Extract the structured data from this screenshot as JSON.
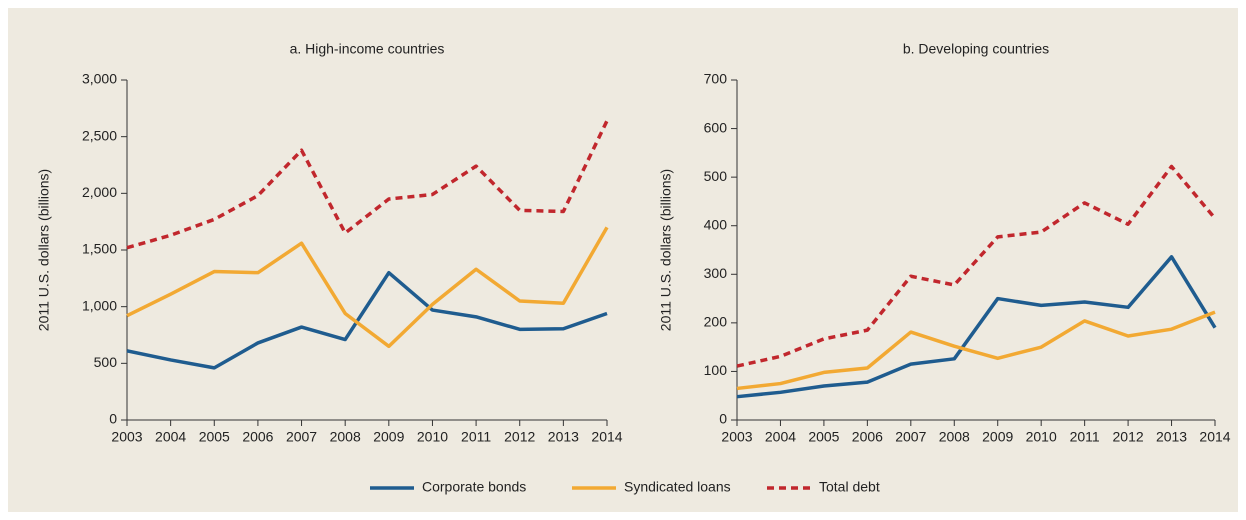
{
  "chart_data": [
    {
      "type": "line",
      "title": "a. High-income countries",
      "y_label": "2011 U.S. dollars (billions)",
      "categories": [
        "2003",
        "2004",
        "2005",
        "2006",
        "2007",
        "2008",
        "2009",
        "2010",
        "2011",
        "2012",
        "2013",
        "2014"
      ],
      "ylim": [
        0,
        3000
      ],
      "yticks": [
        0,
        500,
        {
          "value": 1000,
          "label": "1,000"
        },
        {
          "value": 1500,
          "label": "1,500"
        },
        {
          "value": 2000,
          "label": "2,000"
        },
        {
          "value": 2500,
          "label": "2,500"
        },
        {
          "value": 3000,
          "label": "3,000"
        }
      ],
      "series": [
        {
          "name": "Corporate bonds",
          "color": "#1f5c8f",
          "dash": false,
          "values": [
            610,
            530,
            460,
            680,
            820,
            710,
            1300,
            970,
            910,
            800,
            805,
            940
          ]
        },
        {
          "name": "Syndicated loans",
          "color": "#f2a933",
          "dash": false,
          "values": [
            920,
            1110,
            1310,
            1300,
            1560,
            940,
            650,
            1020,
            1330,
            1050,
            1030,
            1700
          ]
        },
        {
          "name": "Total debt",
          "color": "#c1272d",
          "dash": true,
          "values": [
            1520,
            1630,
            1770,
            1980,
            2380,
            1650,
            1950,
            1990,
            2240,
            1850,
            1840,
            2640
          ]
        }
      ]
    },
    {
      "type": "line",
      "title": "b. Developing countries",
      "y_label": "2011 U.S. dollars (billions)",
      "categories": [
        "2003",
        "2004",
        "2005",
        "2006",
        "2007",
        "2008",
        "2009",
        "2010",
        "2011",
        "2012",
        "2013",
        "2014"
      ],
      "ylim": [
        0,
        700
      ],
      "yticks": [
        0,
        100,
        200,
        300,
        400,
        500,
        600,
        700
      ],
      "series": [
        {
          "name": "Corporate bonds",
          "color": "#1f5c8f",
          "dash": false,
          "values": [
            48,
            57,
            70,
            78,
            115,
            126,
            250,
            236,
            243,
            232,
            336,
            190
          ]
        },
        {
          "name": "Syndicated loans",
          "color": "#f2a933",
          "dash": false,
          "values": [
            65,
            75,
            98,
            107,
            181,
            152,
            127,
            150,
            204,
            173,
            187,
            222
          ]
        },
        {
          "name": "Total debt",
          "color": "#c1272d",
          "dash": true,
          "values": [
            111,
            131,
            167,
            185,
            296,
            278,
            377,
            387,
            447,
            403,
            522,
            415
          ]
        }
      ]
    }
  ]
}
